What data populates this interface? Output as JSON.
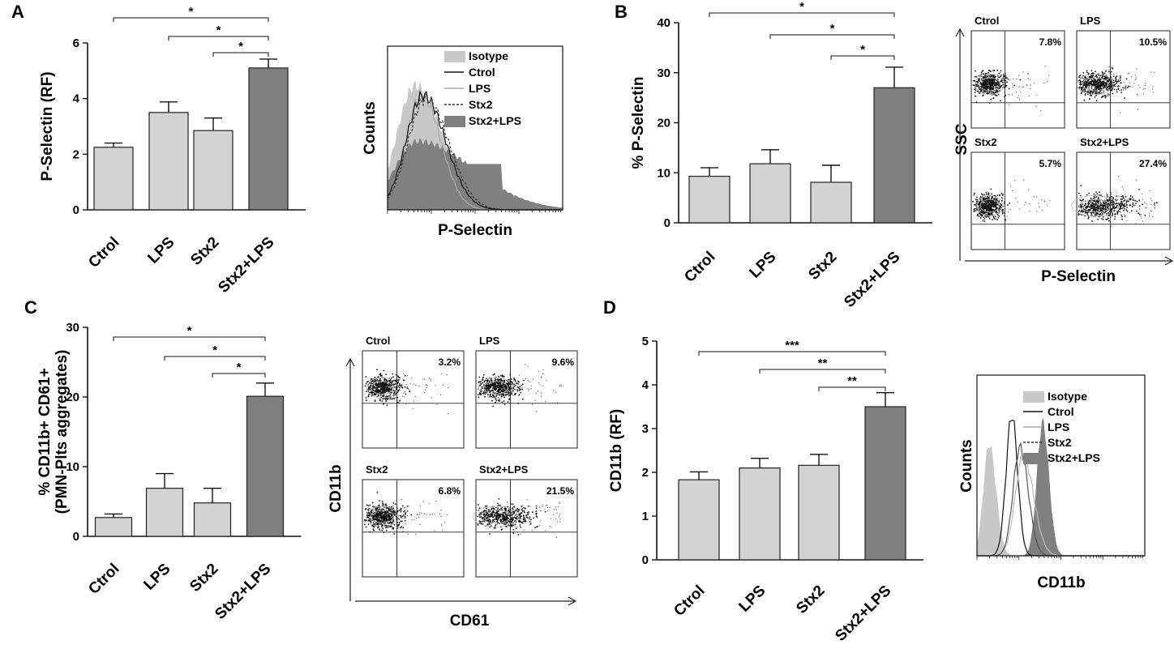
{
  "colors": {
    "light_bar": "#d3d3d3",
    "dark_bar": "#7f7f7f",
    "axis": "#111111",
    "isotype": "#c8c8c8",
    "stx2lps_fill": "#808080"
  },
  "chart_data": [
    {
      "id": "A",
      "panel_label": "A",
      "type": "bar",
      "title": "",
      "ylabel": "P-Selectin (RF)",
      "xlabel": "",
      "ylim": [
        0,
        6
      ],
      "yticks": [
        "0",
        "2",
        "4",
        "6"
      ],
      "categories": [
        "Ctrol",
        "LPS",
        "Stx2",
        "Stx2+LPS"
      ],
      "values": [
        2.25,
        3.5,
        2.85,
        5.1
      ],
      "errors": [
        0.15,
        0.38,
        0.45,
        0.32
      ],
      "highlight_index": 3,
      "significance": [
        {
          "from": 0,
          "to": 3,
          "label": "*"
        },
        {
          "from": 1,
          "to": 3,
          "label": "*"
        },
        {
          "from": 2,
          "to": 3,
          "label": "*"
        }
      ]
    },
    {
      "id": "A-hist",
      "type": "histogram",
      "xlabel": "P-Selectin",
      "ylabel": "Counts",
      "legend": [
        "Isotype",
        "Ctrol",
        "LPS",
        "Stx2",
        "Stx2+LPS"
      ]
    },
    {
      "id": "B",
      "panel_label": "B",
      "type": "bar",
      "title": "",
      "ylabel": "% P-Selectin",
      "xlabel": "",
      "ylim": [
        0,
        40
      ],
      "yticks": [
        "0",
        "10",
        "20",
        "30",
        "40"
      ],
      "categories": [
        "Ctrol",
        "LPS",
        "Stx2",
        "Stx2+LPS"
      ],
      "values": [
        9.3,
        11.8,
        8.1,
        27.0
      ],
      "errors": [
        1.7,
        2.8,
        3.4,
        4.1
      ],
      "highlight_index": 3,
      "significance": [
        {
          "from": 0,
          "to": 3,
          "label": "*"
        },
        {
          "from": 1,
          "to": 3,
          "label": "*"
        },
        {
          "from": 2,
          "to": 3,
          "label": "*"
        }
      ]
    },
    {
      "id": "B-flow",
      "type": "flow-plots",
      "xlabel": "P-Selectin",
      "ylabel": "SSC",
      "plots": [
        {
          "title": "Ctrol",
          "pct": "7.8%"
        },
        {
          "title": "LPS",
          "pct": "10.5%"
        },
        {
          "title": "Stx2",
          "pct": "5.7%"
        },
        {
          "title": "Stx2+LPS",
          "pct": "27.4%"
        }
      ]
    },
    {
      "id": "C",
      "panel_label": "C",
      "type": "bar",
      "title": "",
      "ylabel": "% CD11b+ CD61+",
      "ylabel2": "(PMN-Plts aggregates)",
      "xlabel": "",
      "ylim": [
        0,
        30
      ],
      "yticks": [
        "0",
        "10",
        "20",
        "30"
      ],
      "categories": [
        "Ctrol",
        "LPS",
        "Stx2",
        "Stx2+LPS"
      ],
      "values": [
        2.7,
        6.9,
        4.8,
        20.1
      ],
      "errors": [
        0.5,
        2.1,
        2.1,
        1.9
      ],
      "highlight_index": 3,
      "significance": [
        {
          "from": 0,
          "to": 3,
          "label": "*"
        },
        {
          "from": 1,
          "to": 3,
          "label": "*"
        },
        {
          "from": 2,
          "to": 3,
          "label": "*"
        }
      ]
    },
    {
      "id": "C-flow",
      "type": "flow-plots",
      "xlabel": "CD61",
      "ylabel": "CD11b",
      "plots": [
        {
          "title": "Ctrol",
          "pct": "3.2%"
        },
        {
          "title": "LPS",
          "pct": "9.6%"
        },
        {
          "title": "Stx2",
          "pct": "6.8%"
        },
        {
          "title": "Stx2+LPS",
          "pct": "21.5%"
        }
      ]
    },
    {
      "id": "D",
      "panel_label": "D",
      "type": "bar",
      "title": "",
      "ylabel": "CD11b (RF)",
      "xlabel": "",
      "ylim": [
        0,
        5
      ],
      "yticks": [
        "0",
        "1",
        "2",
        "3",
        "4",
        "5"
      ],
      "categories": [
        "Ctrol",
        "LPS",
        "Stx2",
        "Stx2+LPS"
      ],
      "values": [
        1.83,
        2.1,
        2.16,
        3.5
      ],
      "errors": [
        0.18,
        0.22,
        0.25,
        0.32
      ],
      "highlight_index": 3,
      "significance": [
        {
          "from": 0,
          "to": 3,
          "label": "***"
        },
        {
          "from": 1,
          "to": 3,
          "label": "**"
        },
        {
          "from": 2,
          "to": 3,
          "label": "**"
        }
      ]
    },
    {
      "id": "D-hist",
      "type": "histogram",
      "xlabel": "CD11b",
      "ylabel": "Counts",
      "legend": [
        "Isotype",
        "Ctrol",
        "LPS",
        "Stx2",
        "Stx2+LPS"
      ]
    }
  ]
}
